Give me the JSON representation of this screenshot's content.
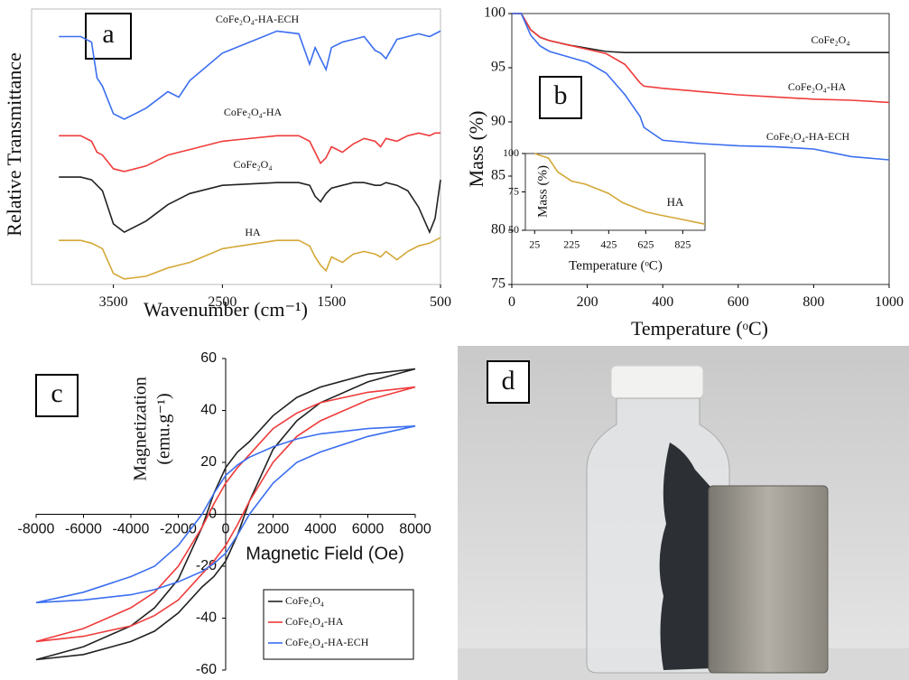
{
  "chart_data": [
    {
      "type": "line",
      "panel_label": "a",
      "xlabel": "Wavenumber (cm⁻¹)",
      "ylabel": "Relative Transmittance",
      "xlim": [
        4250,
        500
      ],
      "xticks": [
        3500,
        2500,
        1500,
        500
      ],
      "ylim": [
        0,
        100
      ],
      "x": [
        4000,
        3800,
        3700,
        3650,
        3600,
        3500,
        3400,
        3200,
        3000,
        2900,
        2800,
        2500,
        2000,
        1800,
        1700,
        1650,
        1600,
        1550,
        1500,
        1400,
        1300,
        1200,
        1100,
        1050,
        1000,
        900,
        800,
        700,
        600,
        550,
        500
      ],
      "series": [
        {
          "name": "CoFe₂O₄-HA-ECH",
          "color": "#3b6ef0",
          "values": [
            90,
            90,
            88,
            75,
            72,
            62,
            60,
            64,
            70,
            68,
            74,
            84,
            92,
            91,
            80,
            86,
            82,
            78,
            86,
            88,
            89,
            90,
            85,
            84,
            82,
            89,
            90,
            91,
            90,
            91,
            92
          ]
        },
        {
          "name": "CoFe₂O₄-HA",
          "color": "#ef3b3b",
          "values": [
            54,
            54,
            52,
            48,
            47,
            42,
            41,
            43,
            47,
            48,
            49,
            52,
            54,
            54,
            52,
            48,
            44,
            46,
            50,
            48,
            51,
            53,
            52,
            50,
            53,
            52,
            54,
            55,
            54,
            55,
            55
          ]
        },
        {
          "name": "CoFe₂O₄",
          "color": "#222222",
          "values": [
            39,
            39,
            38,
            36,
            34,
            22,
            19,
            23,
            29,
            31,
            33,
            36,
            37,
            37,
            36,
            32,
            30,
            33,
            35,
            36,
            37,
            37,
            36,
            36,
            37,
            36,
            34,
            28,
            19,
            24,
            38
          ]
        },
        {
          "name": "HA",
          "color": "#d4a837",
          "values": [
            16,
            16,
            15,
            14,
            13,
            4,
            2,
            3,
            6,
            7,
            8,
            13,
            16,
            16,
            14,
            10,
            7,
            5,
            10,
            8,
            11,
            12,
            11,
            10,
            12,
            9,
            12,
            14,
            15,
            16,
            17
          ]
        }
      ]
    },
    {
      "type": "line",
      "panel_label": "b",
      "xlabel": "Temperature (ᵒC)",
      "ylabel": "Mass (%)",
      "xlim": [
        0,
        1000
      ],
      "xticks": [
        0,
        200,
        400,
        600,
        800,
        1000
      ],
      "ylim": [
        75,
        100
      ],
      "yticks": [
        75,
        80,
        85,
        90,
        95,
        100
      ],
      "x": [
        0,
        25,
        50,
        75,
        100,
        150,
        200,
        250,
        300,
        340,
        350,
        400,
        500,
        600,
        700,
        800,
        900,
        1000
      ],
      "series": [
        {
          "name": "CoFe₂O₄",
          "color": "#222222",
          "values": [
            100,
            100,
            98.5,
            97.8,
            97.5,
            97.1,
            96.8,
            96.5,
            96.4,
            96.4,
            96.4,
            96.4,
            96.4,
            96.4,
            96.4,
            96.4,
            96.4,
            96.4
          ]
        },
        {
          "name": "CoFe₂O₄-HA",
          "color": "#ef3b3b",
          "values": [
            100,
            100,
            98.5,
            97.8,
            97.5,
            97.1,
            96.7,
            96.3,
            95.3,
            93.6,
            93.3,
            93.1,
            92.8,
            92.5,
            92.3,
            92.1,
            92.0,
            91.8
          ]
        },
        {
          "name": "CoFe₂O₄-HA-ECH",
          "color": "#3b6ef0",
          "values": [
            100,
            100,
            98,
            97,
            96.5,
            96,
            95.5,
            94.5,
            92.5,
            90.5,
            89.5,
            88.3,
            88.0,
            87.8,
            87.7,
            87.5,
            86.8,
            86.5
          ]
        }
      ]
    },
    {
      "type": "line",
      "xlabel": "Temperature (ᵒC)",
      "ylabel": "Mass (%)",
      "xlim": [
        -25,
        945
      ],
      "xticks": [
        25,
        225,
        425,
        625,
        825
      ],
      "ylim": [
        50,
        100
      ],
      "yticks": [
        50,
        75,
        100
      ],
      "x": [
        25,
        100,
        150,
        225,
        300,
        425,
        500,
        625,
        700,
        825,
        945
      ],
      "series": [
        {
          "name": "HA",
          "color": "#d4a837",
          "values": [
            100,
            97,
            88,
            82,
            80,
            74,
            68,
            62,
            60,
            57,
            54
          ]
        }
      ]
    },
    {
      "type": "line",
      "panel_label": "c",
      "xlabel": "Magnetic Field (Oe)",
      "ylabel": [
        "Magnetization",
        "(emu.g⁻¹)"
      ],
      "xlim": [
        -8000,
        8000
      ],
      "xticks": [
        -8000,
        -6000,
        -4000,
        -2000,
        0,
        2000,
        4000,
        6000,
        8000
      ],
      "ylim": [
        -60,
        60
      ],
      "yticks": [
        -60,
        -40,
        -20,
        0,
        20,
        40,
        60
      ],
      "legend": "lower right",
      "x": [
        8000,
        6000,
        4000,
        3000,
        2000,
        1000,
        500,
        0,
        -500,
        -1000,
        -2000,
        -3000,
        -4000,
        -6000,
        -8000,
        -6000,
        -4000,
        -3000,
        -2000,
        -1000,
        -500,
        0,
        500,
        1000,
        2000,
        3000,
        4000,
        6000,
        8000
      ],
      "series": [
        {
          "name": "CoFe₂O₄",
          "color": "#222222",
          "values": [
            56,
            54,
            49,
            45,
            38,
            28,
            24,
            18,
            8,
            -5,
            -25,
            -36,
            -43,
            -51,
            -56,
            -54,
            -49,
            -45,
            -38,
            -28,
            -24,
            -18,
            -8,
            5,
            25,
            36,
            43,
            51,
            56
          ]
        },
        {
          "name": "CoFe₂O₄-HA",
          "color": "#ef3b3b",
          "values": [
            49,
            47,
            43,
            39,
            33,
            23,
            18,
            12,
            4,
            -5,
            -20,
            -30,
            -36,
            -44,
            -49,
            -47,
            -43,
            -39,
            -33,
            -23,
            -18,
            -12,
            -4,
            5,
            20,
            30,
            36,
            44,
            49
          ]
        },
        {
          "name": "CoFe₂O₄-HA-ECH",
          "color": "#3b6ef0",
          "values": [
            34,
            33,
            31,
            29,
            26,
            22,
            19,
            15,
            8,
            0,
            -12,
            -20,
            -24,
            -30,
            -34,
            -33,
            -31,
            -29,
            -26,
            -22,
            -19,
            -15,
            -8,
            0,
            12,
            20,
            24,
            30,
            34
          ]
        }
      ]
    }
  ],
  "photo": {
    "label": "d"
  }
}
